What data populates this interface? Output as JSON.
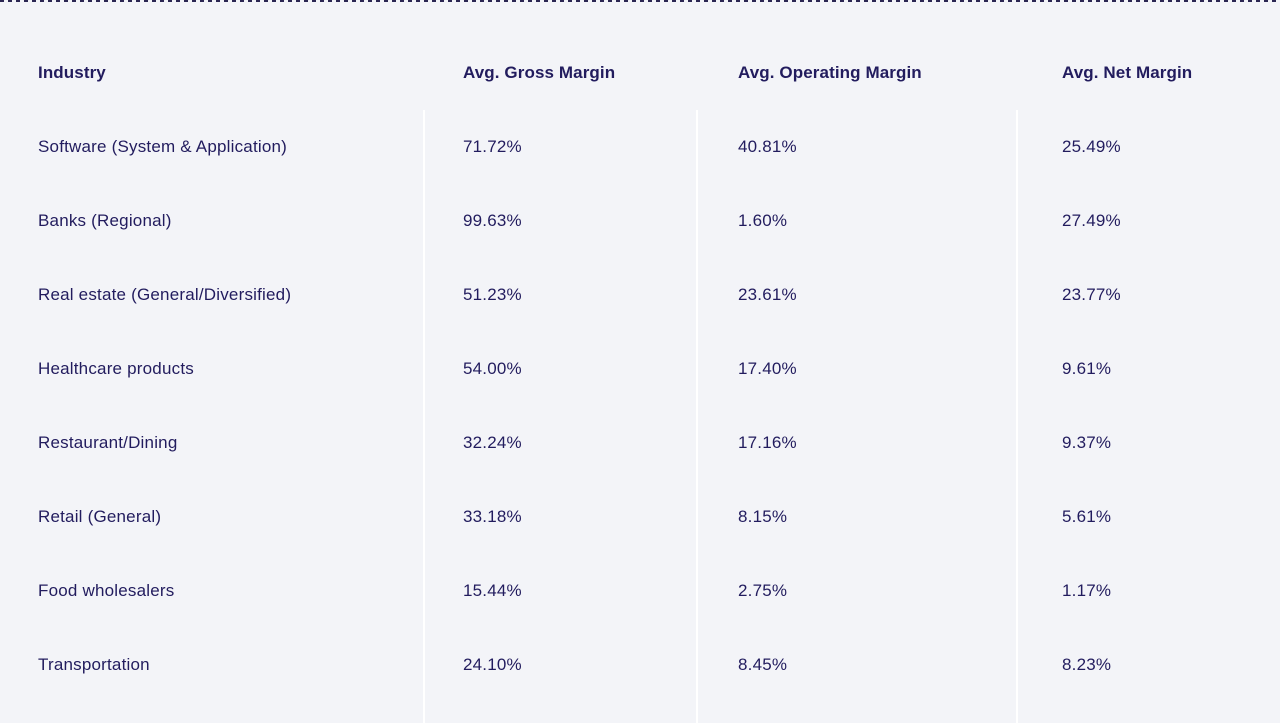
{
  "theme": {
    "background": "#f3f4f8",
    "text": "#221c5e",
    "divider": "#ffffff",
    "top_border": "#2b2653"
  },
  "chart_data": {
    "type": "table",
    "columns": [
      "Industry",
      "Avg. Gross Margin",
      "Avg. Operating Margin",
      "Avg. Net Margin"
    ],
    "rows": [
      [
        "Software (System & Application)",
        "71.72%",
        "40.81%",
        "25.49%"
      ],
      [
        "Banks (Regional)",
        "99.63%",
        "1.60%",
        "27.49%"
      ],
      [
        "Real estate (General/Diversified)",
        "51.23%",
        "23.61%",
        "23.77%"
      ],
      [
        "Healthcare products",
        "54.00%",
        "17.40%",
        "9.61%"
      ],
      [
        "Restaurant/Dining",
        "32.24%",
        "17.16%",
        "9.37%"
      ],
      [
        "Retail (General)",
        "33.18%",
        "8.15%",
        "5.61%"
      ],
      [
        "Food wholesalers",
        "15.44%",
        "2.75%",
        "1.17%"
      ],
      [
        "Transportation",
        "24.10%",
        "8.45%",
        "8.23%"
      ]
    ]
  }
}
